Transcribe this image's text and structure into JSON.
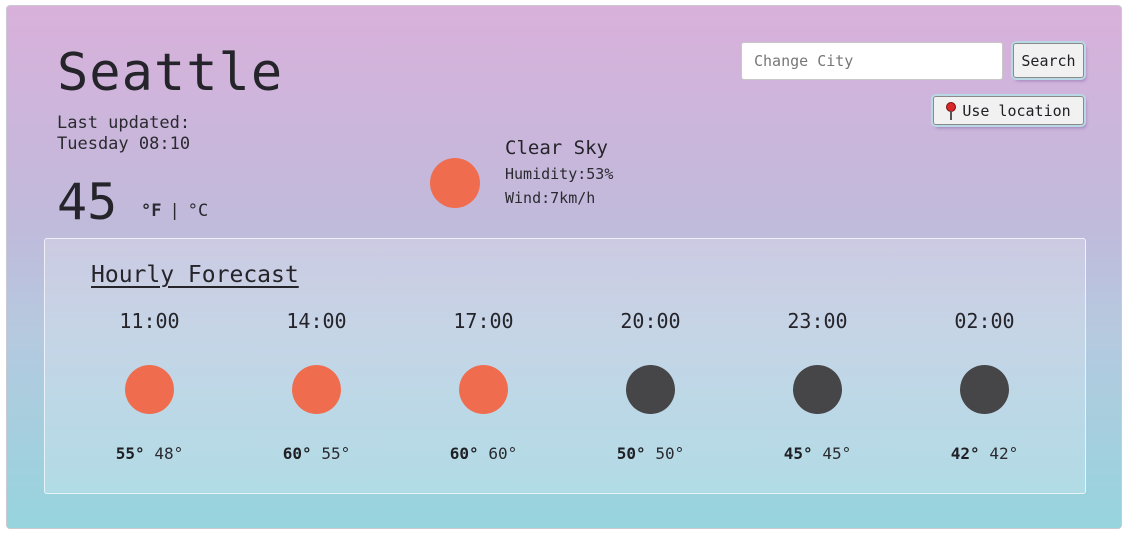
{
  "header": {
    "city": "Seattle",
    "last_updated_label": "Last updated:",
    "last_updated_value": "Tuesday 08:10"
  },
  "current": {
    "temperature": "45",
    "unit_f": "°F",
    "unit_separator": "|",
    "unit_c": "°C",
    "icon": "sun-icon",
    "icon_color": "#ef6d4e",
    "description": "Clear Sky",
    "humidity": "Humidity:53%",
    "wind": "Wind:7km/h"
  },
  "search": {
    "placeholder": "Change City",
    "value": "",
    "button_label": "Search",
    "location_button_label": "Use location",
    "location_icon": "map-pin-icon"
  },
  "forecast": {
    "title": "Hourly Forecast",
    "hours": [
      {
        "time": "11:00",
        "icon": "sun-icon",
        "icon_color": "#ef6d4e",
        "high": "55°",
        "low": "48°"
      },
      {
        "time": "14:00",
        "icon": "sun-icon",
        "icon_color": "#ef6d4e",
        "high": "60°",
        "low": "55°"
      },
      {
        "time": "17:00",
        "icon": "sun-icon",
        "icon_color": "#ef6d4e",
        "high": "60°",
        "low": "60°"
      },
      {
        "time": "20:00",
        "icon": "moon-icon",
        "icon_color": "#464548",
        "high": "50°",
        "low": "50°"
      },
      {
        "time": "23:00",
        "icon": "moon-icon",
        "icon_color": "#464548",
        "high": "45°",
        "low": "45°"
      },
      {
        "time": "02:00",
        "icon": "moon-icon",
        "icon_color": "#464548",
        "high": "42°",
        "low": "42°"
      }
    ]
  },
  "colors": {
    "gradient_top": "#d9b1db",
    "gradient_bottom": "#96d4de",
    "sun": "#ef6d4e",
    "moon": "#464548"
  }
}
